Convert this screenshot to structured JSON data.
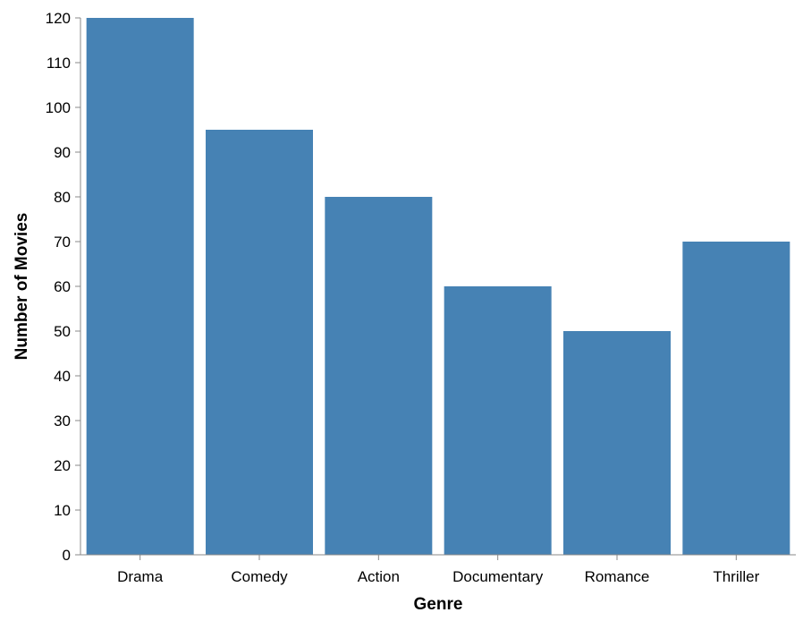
{
  "chart_data": {
    "type": "bar",
    "title": "",
    "xlabel": "Genre",
    "ylabel": "Number of Movies",
    "categories": [
      "Drama",
      "Comedy",
      "Action",
      "Documentary",
      "Romance",
      "Thriller"
    ],
    "values": [
      120,
      95,
      80,
      60,
      50,
      70
    ],
    "ylim": [
      0,
      120
    ],
    "yticks": [
      0,
      10,
      20,
      30,
      40,
      50,
      60,
      70,
      80,
      90,
      100,
      110,
      120
    ],
    "grid": false,
    "colors": {
      "bar": "#4682b4",
      "axis": "#888888"
    }
  }
}
